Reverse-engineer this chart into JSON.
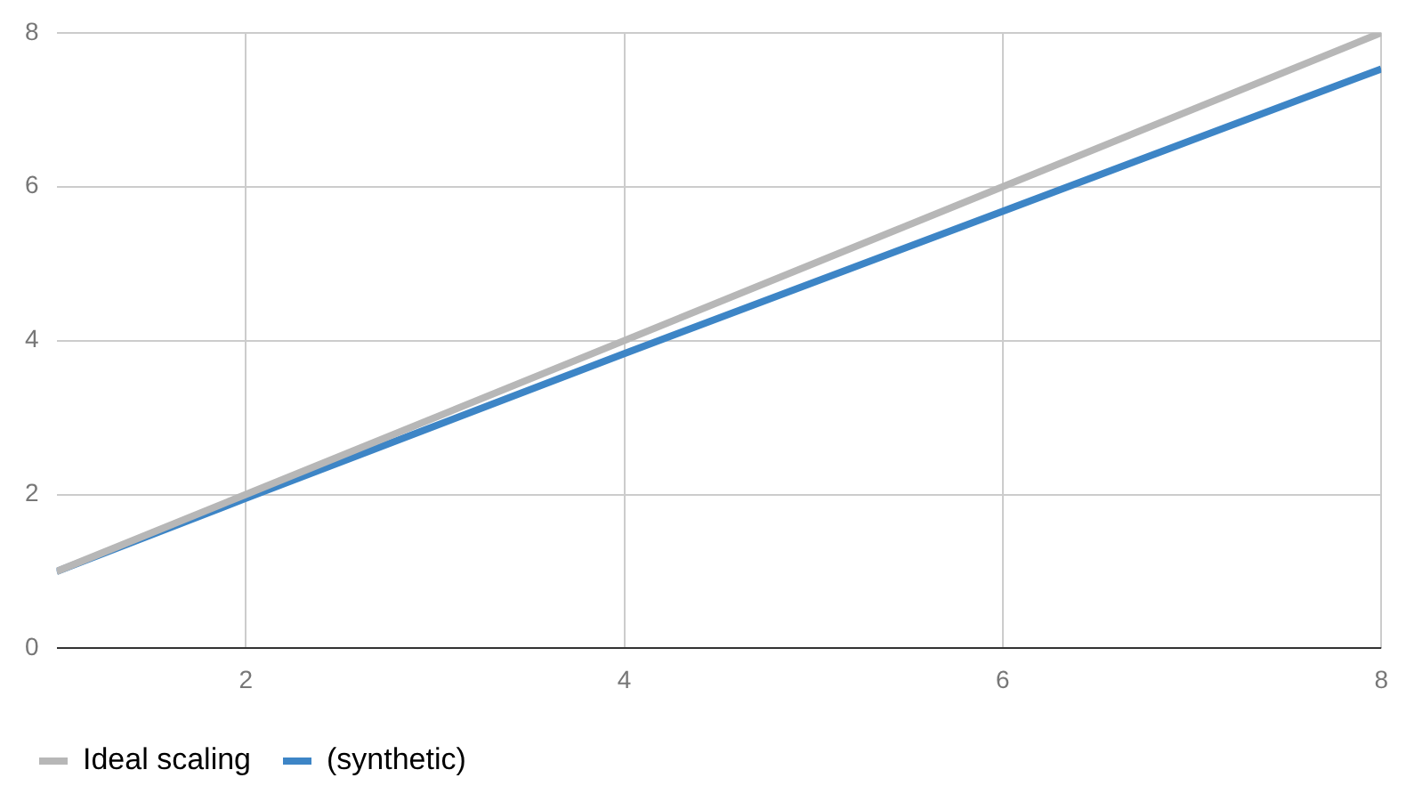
{
  "chart_data": {
    "type": "line",
    "x": [
      1,
      2,
      4,
      8
    ],
    "series": [
      {
        "name": "Ideal scaling",
        "color": "#b7b7b7",
        "values": [
          1,
          2,
          4,
          8
        ]
      },
      {
        "name": "(synthetic)",
        "color": "#3d85c6",
        "values": [
          1,
          1.95,
          3.83,
          7.53
        ]
      }
    ],
    "xlim": [
      1,
      8
    ],
    "xticks": [
      2,
      4,
      6,
      8
    ],
    "ylim": [
      0,
      8
    ],
    "yticks": [
      0,
      2,
      4,
      6,
      8
    ],
    "grid": true,
    "legend": "bottom",
    "marker": "none",
    "line_style": "solid"
  }
}
